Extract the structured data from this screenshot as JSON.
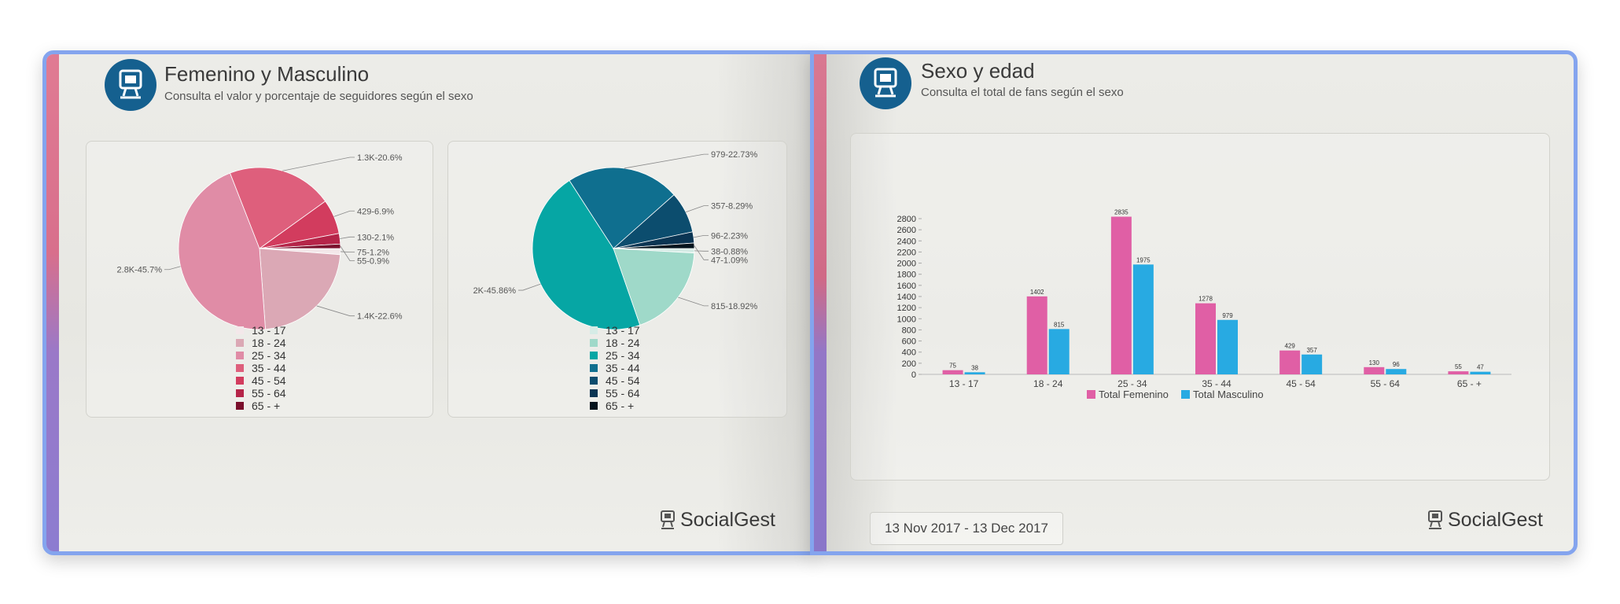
{
  "left_page": {
    "title": "Femenino y Masculino",
    "subtitle": "Consulta el valor y porcentaje de seguidores según el sexo",
    "brand": "SocialGest"
  },
  "right_page": {
    "title": "Sexo y edad",
    "subtitle": "Consulta el total de fans según el sexo",
    "brand": "SocialGest",
    "date_range": "13 Nov 2017 - 13 Dec 2017"
  },
  "icons": {
    "header_logo": "socialgest-robot-icon",
    "brand_logo": "socialgest-robot-icon"
  },
  "chart_data": [
    {
      "type": "pie",
      "title": "",
      "legend_placement": "bottom",
      "categories": [
        "13 - 17",
        "18 - 24",
        "25 - 34",
        "35 - 44",
        "45 - 54",
        "55 - 64",
        "65 - +"
      ],
      "values": [
        75,
        1400,
        2800,
        1300,
        429,
        130,
        55
      ],
      "labels": [
        "75-1.2%",
        "1.4K-22.6%",
        "2.8K-45.7%",
        "1.3K-20.6%",
        "429-6.9%",
        "130-2.1%",
        "55-0.9%"
      ],
      "colors": [
        "#f3e8ea",
        "#dba8b5",
        "#e08ca6",
        "#de5f7c",
        "#d23c5e",
        "#b52549",
        "#7a0f2c"
      ]
    },
    {
      "type": "pie",
      "title": "",
      "legend_placement": "bottom",
      "categories": [
        "13 - 17",
        "18 - 24",
        "25 - 34",
        "35 - 44",
        "45 - 54",
        "55 - 64",
        "65 - +"
      ],
      "values": [
        38,
        815,
        2000,
        979,
        357,
        96,
        47
      ],
      "labels": [
        "38-0.88%",
        "815-18.92%",
        "2K-45.86%",
        "979-22.73%",
        "357-8.29%",
        "96-2.23%",
        "47-1.09%"
      ],
      "colors": [
        "#d6ece6",
        "#9fd9c9",
        "#06a6a4",
        "#0f6f8f",
        "#0c4d6e",
        "#0a3553",
        "#04131c"
      ]
    },
    {
      "type": "bar",
      "title": "",
      "categories": [
        "13 - 17",
        "18 - 24",
        "25 - 34",
        "35 - 44",
        "45 - 54",
        "55 - 64",
        "65 - +"
      ],
      "series": [
        {
          "name": "Total Femenino",
          "values": [
            75,
            1402,
            2835,
            1278,
            429,
            130,
            55
          ],
          "color": "#e05fa5"
        },
        {
          "name": "Total Masculino",
          "values": [
            38,
            815,
            1975,
            979,
            357,
            96,
            47
          ],
          "color": "#28aae2"
        }
      ],
      "ylim": [
        0,
        2800
      ],
      "yticks": [
        "0",
        "200",
        "400",
        "600",
        "800",
        "1000",
        "1200",
        "1400",
        "1600",
        "1800",
        "2000",
        "2200",
        "2400",
        "2600",
        "2800"
      ],
      "legend_placement": "bottom",
      "grid": false
    }
  ]
}
